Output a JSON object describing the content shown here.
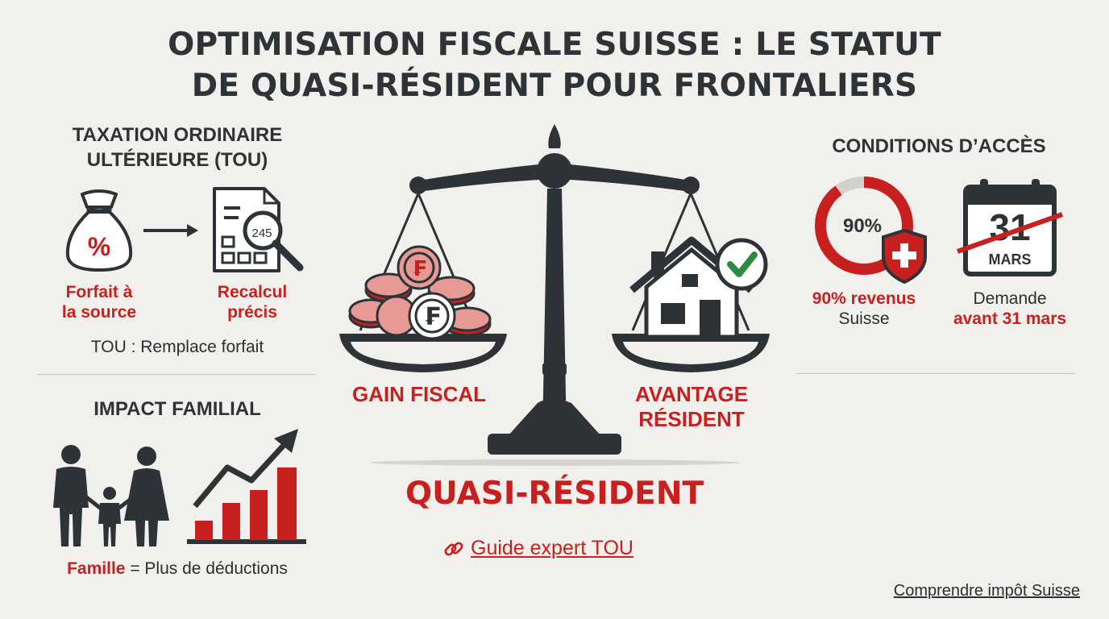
{
  "header": {
    "title_line1": "OPTIMISATION FISCALE SUISSE : LE STATUT",
    "title_line2": "DE QUASI-RÉSIDENT POUR FRONTALIERS"
  },
  "tou": {
    "heading_line1": "TAXATION ORDINAIRE",
    "heading_line2": "ULTÉRIEURE (TOU)",
    "bag_symbol": "%",
    "doc_number": "245",
    "step1_line1": "Forfait à",
    "step1_line2": "la source",
    "step2_line1": "Recalcul",
    "step2_line2": "précis",
    "note": "TOU : Remplace forfait"
  },
  "family": {
    "heading": "IMPACT FAMILIAL",
    "caption_bold": "Famille",
    "caption_rest": " = Plus de déductions"
  },
  "balance": {
    "left_label": "GAIN FISCAL",
    "right_label_line1": "AVANTAGE",
    "right_label_line2": "RÉSIDENT",
    "coin_symbol": "₣",
    "status": "QUASI-RÉSIDENT",
    "guide_link": "Guide expert TOU"
  },
  "conditions": {
    "heading": "CONDITIONS D’ACCÈS",
    "ring_value_text": "90%",
    "ring_fraction": 0.9,
    "income_bold": "90% revenus",
    "income_rest": "Suisse",
    "calendar_day": "31",
    "calendar_month": "MARS",
    "deadline_line1": "Demande",
    "deadline_line2": "avant 31 mars"
  },
  "footer": {
    "link": "Comprendre impôt Suisse"
  },
  "colors": {
    "accent_red": "#c8201f",
    "dark": "#2d3336",
    "background": "#f1f0ec",
    "check_green": "#2e8b3e"
  },
  "icons": [
    "money-bag-icon",
    "arrow-right-icon",
    "document-magnifier-icon",
    "family-icon",
    "growth-chart-icon",
    "balance-scale-icon",
    "coin-stack-icon",
    "house-icon",
    "checkmark-icon",
    "ring-gauge-icon",
    "swiss-shield-icon",
    "calendar-icon",
    "link-icon"
  ]
}
